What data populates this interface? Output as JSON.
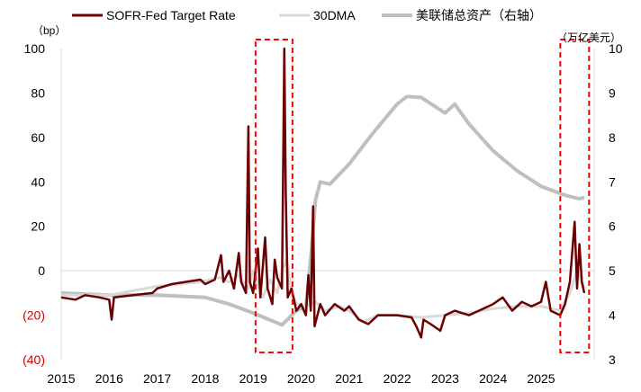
{
  "chart_data": {
    "type": "line",
    "legend": {
      "position": "top",
      "entries": [
        "SOFR-Fed Target Rate",
        "30DMA",
        "美联储总资产（右轴）"
      ]
    },
    "left_unit": "（bp）",
    "right_unit": "（万亿美元）",
    "left_axis": {
      "range": [
        -40,
        100
      ],
      "ticks": [
        "100",
        "80",
        "60",
        "40",
        "20",
        "0",
        "(20)",
        "(40)"
      ],
      "tick_values": [
        100,
        80,
        60,
        40,
        20,
        0,
        -20,
        -40
      ],
      "negative_color": "#cc0000"
    },
    "right_axis": {
      "range": [
        3,
        10
      ],
      "ticks": [
        "10",
        "9",
        "8",
        "7",
        "6",
        "5",
        "4",
        "3"
      ],
      "tick_values": [
        10,
        9,
        8,
        7,
        6,
        5,
        4,
        3
      ]
    },
    "x_ticks": [
      "2015",
      "2016",
      "2017",
      "2018",
      "2019",
      "2020",
      "2021",
      "2022",
      "2023",
      "2024",
      "2025"
    ],
    "x_range": [
      2015,
      2026.1
    ],
    "highlight_ranges": [
      [
        2019.05,
        2019.82
      ],
      [
        2025.4,
        2026.0
      ]
    ],
    "series": [
      {
        "name": "SOFR-Fed Target Rate",
        "color": "#6b0000",
        "axis": "left",
        "points": [
          [
            2015.0,
            -12
          ],
          [
            2015.3,
            -13
          ],
          [
            2015.5,
            -11
          ],
          [
            2015.8,
            -12
          ],
          [
            2016.0,
            -13
          ],
          [
            2016.05,
            -22
          ],
          [
            2016.1,
            -12
          ],
          [
            2016.5,
            -11
          ],
          [
            2016.9,
            -10
          ],
          [
            2017.0,
            -8
          ],
          [
            2017.3,
            -6
          ],
          [
            2017.6,
            -5
          ],
          [
            2017.9,
            -4
          ],
          [
            2018.0,
            -6
          ],
          [
            2018.2,
            -4
          ],
          [
            2018.33,
            7
          ],
          [
            2018.38,
            -5
          ],
          [
            2018.5,
            0
          ],
          [
            2018.6,
            -8
          ],
          [
            2018.7,
            8
          ],
          [
            2018.75,
            -5
          ],
          [
            2018.85,
            -10
          ],
          [
            2018.9,
            65
          ],
          [
            2018.93,
            -5
          ],
          [
            2019.0,
            -10
          ],
          [
            2019.1,
            10
          ],
          [
            2019.15,
            -12
          ],
          [
            2019.25,
            15
          ],
          [
            2019.3,
            -8
          ],
          [
            2019.4,
            -15
          ],
          [
            2019.45,
            5
          ],
          [
            2019.5,
            -3
          ],
          [
            2019.6,
            -8
          ],
          [
            2019.65,
            100
          ],
          [
            2019.68,
            35
          ],
          [
            2019.72,
            -12
          ],
          [
            2019.8,
            -8
          ],
          [
            2019.9,
            -18
          ],
          [
            2020.0,
            -15
          ],
          [
            2020.1,
            -20
          ],
          [
            2020.15,
            -2
          ],
          [
            2020.2,
            -18
          ],
          [
            2020.25,
            29
          ],
          [
            2020.28,
            -25
          ],
          [
            2020.4,
            -15
          ],
          [
            2020.5,
            -20
          ],
          [
            2020.7,
            -15
          ],
          [
            2020.9,
            -18
          ],
          [
            2021.0,
            -16
          ],
          [
            2021.2,
            -22
          ],
          [
            2021.4,
            -24
          ],
          [
            2021.6,
            -20
          ],
          [
            2022.0,
            -20
          ],
          [
            2022.3,
            -21
          ],
          [
            2022.4,
            -25
          ],
          [
            2022.5,
            -30
          ],
          [
            2022.55,
            -22
          ],
          [
            2022.7,
            -24
          ],
          [
            2022.9,
            -27
          ],
          [
            2023.0,
            -20
          ],
          [
            2023.2,
            -18
          ],
          [
            2023.5,
            -20
          ],
          [
            2023.8,
            -17
          ],
          [
            2024.0,
            -15
          ],
          [
            2024.2,
            -12
          ],
          [
            2024.4,
            -18
          ],
          [
            2024.6,
            -14
          ],
          [
            2024.8,
            -16
          ],
          [
            2025.0,
            -14
          ],
          [
            2025.1,
            -5
          ],
          [
            2025.2,
            -18
          ],
          [
            2025.4,
            -20
          ],
          [
            2025.5,
            -15
          ],
          [
            2025.6,
            -5
          ],
          [
            2025.7,
            22
          ],
          [
            2025.75,
            -8
          ],
          [
            2025.8,
            12
          ],
          [
            2025.85,
            -5
          ],
          [
            2025.9,
            -10
          ]
        ]
      },
      {
        "name": "30DMA",
        "color": "#d9d9d9",
        "axis": "left",
        "points": [
          [
            2015.0,
            -11
          ],
          [
            2016.0,
            -11
          ],
          [
            2017.0,
            -7
          ],
          [
            2017.9,
            -5
          ],
          [
            2018.3,
            -3
          ],
          [
            2018.5,
            -5
          ],
          [
            2018.7,
            -2
          ],
          [
            2018.9,
            -8
          ],
          [
            2019.0,
            0
          ],
          [
            2019.2,
            -12
          ],
          [
            2019.35,
            -4
          ],
          [
            2019.5,
            -10
          ],
          [
            2019.6,
            0
          ],
          [
            2019.7,
            5
          ],
          [
            2019.8,
            -10
          ],
          [
            2019.9,
            -15
          ],
          [
            2020.1,
            -16
          ],
          [
            2020.3,
            -14
          ],
          [
            2020.5,
            -18
          ],
          [
            2020.8,
            -16
          ],
          [
            2021.0,
            -18
          ],
          [
            2021.3,
            -23
          ],
          [
            2021.6,
            -20
          ],
          [
            2022.0,
            -20
          ],
          [
            2022.5,
            -21
          ],
          [
            2023.0,
            -20
          ],
          [
            2023.5,
            -19
          ],
          [
            2024.0,
            -17
          ],
          [
            2024.5,
            -16
          ],
          [
            2025.0,
            -16
          ],
          [
            2025.4,
            -18
          ],
          [
            2025.6,
            -10
          ],
          [
            2025.75,
            0
          ],
          [
            2025.9,
            -8
          ]
        ]
      },
      {
        "name": "美联储总资产（右轴）",
        "color": "#bfbfbf",
        "axis": "right",
        "points": [
          [
            2015.0,
            4.5
          ],
          [
            2016.0,
            4.45
          ],
          [
            2017.0,
            4.45
          ],
          [
            2018.0,
            4.4
          ],
          [
            2018.5,
            4.25
          ],
          [
            2019.0,
            4.05
          ],
          [
            2019.6,
            3.78
          ],
          [
            2019.9,
            4.1
          ],
          [
            2020.1,
            4.2
          ],
          [
            2020.2,
            5.3
          ],
          [
            2020.3,
            6.6
          ],
          [
            2020.4,
            7.0
          ],
          [
            2020.6,
            6.95
          ],
          [
            2021.0,
            7.4
          ],
          [
            2021.5,
            8.1
          ],
          [
            2022.0,
            8.75
          ],
          [
            2022.2,
            8.92
          ],
          [
            2022.5,
            8.9
          ],
          [
            2023.0,
            8.55
          ],
          [
            2023.2,
            8.75
          ],
          [
            2023.5,
            8.3
          ],
          [
            2024.0,
            7.7
          ],
          [
            2024.5,
            7.25
          ],
          [
            2025.0,
            6.9
          ],
          [
            2025.5,
            6.7
          ],
          [
            2025.8,
            6.62
          ],
          [
            2025.9,
            6.65
          ]
        ]
      }
    ]
  }
}
